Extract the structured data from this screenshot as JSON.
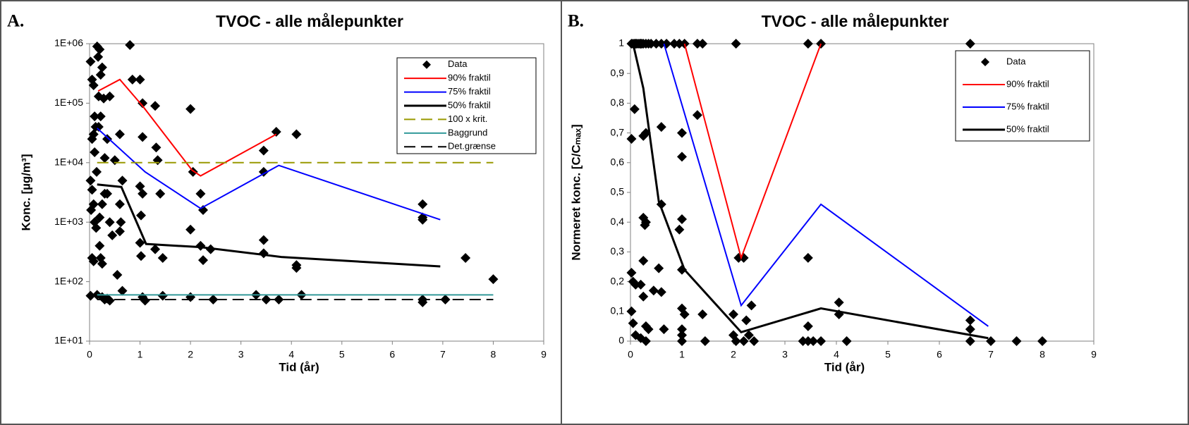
{
  "chart_data": [
    {
      "type": "scatter",
      "panel_label": "A.",
      "title": "TVOC - alle målepunkter",
      "xlabel": "Tid (år)",
      "ylabel": "Konc. [µg/m³]",
      "xlim": [
        0,
        9
      ],
      "xticks": [
        0,
        1,
        2,
        3,
        4,
        5,
        6,
        7,
        8,
        9
      ],
      "ylim": [
        10,
        1000000
      ],
      "log_y": true,
      "yticks": [
        {
          "value": 10,
          "label": "1E+01"
        },
        {
          "value": 100,
          "label": "1E+02"
        },
        {
          "value": 1000,
          "label": "1E+03"
        },
        {
          "value": 10000,
          "label": "1E+04"
        },
        {
          "value": 100000,
          "label": "1E+05"
        },
        {
          "value": 1000000,
          "label": "1E+06"
        }
      ],
      "series": [
        {
          "name": "Data",
          "kind": "marker",
          "color": "#000000",
          "x": [
            0.02,
            0.05,
            0.08,
            0.1,
            0.12,
            0.15,
            0.17,
            0.2,
            0.22,
            0.25,
            0.18,
            0.08,
            0.05,
            0.1,
            0.14,
            0.02,
            0.05,
            0.08,
            0.03,
            0.1,
            0.13,
            0.2,
            0.25,
            0.3,
            0.35,
            0.4,
            0.45,
            0.2,
            0.22,
            0.05,
            0.08,
            0.25,
            0.15,
            0.25,
            0.3,
            0.02,
            0.35,
            0.4,
            0.18,
            0.22,
            0.28,
            0.3,
            0.35,
            0.4,
            0.5,
            0.55,
            0.6,
            0.6,
            0.62,
            0.6,
            0.65,
            0.65,
            0.8,
            0.85,
            1.0,
            1.05,
            1.05,
            1.0,
            1.05,
            1.02,
            1.0,
            1.02,
            1.05,
            1.1,
            1.3,
            1.32,
            1.35,
            1.3,
            1.4,
            1.45,
            1.45,
            2.0,
            2.05,
            2.0,
            2.0,
            2.2,
            2.25,
            2.2,
            2.25,
            2.4,
            2.45,
            3.3,
            3.45,
            3.45,
            3.45,
            3.45,
            3.5,
            3.7,
            3.75,
            4.1,
            4.1,
            4.1,
            4.2,
            6.6,
            6.6,
            6.6,
            6.6,
            6.6,
            7.05,
            7.45,
            8.0
          ],
          "values": [
            500000,
            250000,
            200000,
            60000,
            40000,
            900000,
            600000,
            800000,
            300000,
            400000,
            130000,
            30000,
            25000,
            15000,
            7000,
            5000,
            3500,
            2000,
            1600,
            1000,
            800,
            1200,
            2000,
            3000,
            3000,
            1000,
            600,
            400,
            250,
            250,
            220,
            200,
            60,
            55,
            50,
            58,
            52,
            48,
            40000,
            60000,
            120000,
            12000,
            25000,
            130000,
            11000,
            130,
            30000,
            2000,
            1000,
            700,
            5000,
            70,
            950000,
            250000,
            250000,
            100000,
            27000,
            4000,
            3000,
            1300,
            450,
            270,
            55,
            48,
            90000,
            18000,
            11000,
            350,
            3000,
            250,
            58,
            80000,
            7000,
            750,
            55,
            3000,
            1600,
            400,
            230,
            350,
            50,
            60,
            16000,
            7000,
            500,
            300,
            50,
            33000,
            50,
            30000,
            190,
            170,
            60,
            2000,
            1100,
            1200,
            50,
            45,
            50,
            250,
            110
          ]
        },
        {
          "name": "90% fraktil",
          "kind": "line",
          "color": "#ff0000",
          "x": [
            0.17,
            0.6,
            1.05,
            2.03,
            2.2,
            3.7
          ],
          "values": [
            160000,
            250000,
            90000,
            7500,
            6000,
            30000
          ]
        },
        {
          "name": "75% fraktil",
          "kind": "line",
          "color": "#0000ff",
          "x": [
            0.15,
            1.1,
            2.2,
            3.75,
            6.95
          ],
          "values": [
            38000,
            7000,
            1700,
            9000,
            1100
          ]
        },
        {
          "name": "50% fraktil",
          "kind": "line",
          "color": "#000000",
          "width": 3,
          "x": [
            0.15,
            0.63,
            1.12,
            2.2,
            3.8,
            6.95
          ],
          "values": [
            4300,
            3900,
            430,
            380,
            260,
            180
          ]
        },
        {
          "name": "100 x krit.",
          "kind": "line",
          "dash": true,
          "color": "#999900",
          "x": [
            0.15,
            8
          ],
          "values": [
            10000,
            10000
          ]
        },
        {
          "name": "Baggrund",
          "kind": "line",
          "color": "#339999",
          "x": [
            0.15,
            8
          ],
          "values": [
            60,
            60
          ]
        },
        {
          "name": "Det.grænse",
          "kind": "line",
          "dash": true,
          "color": "#000000",
          "x": [
            0.15,
            8
          ],
          "values": [
            50,
            50
          ]
        }
      ]
    },
    {
      "type": "scatter",
      "panel_label": "B.",
      "title": "TVOC - alle målepunkter",
      "xlabel": "Tid (år)",
      "ylabel": "Normeret konc. [C/Cₘₐₓ]",
      "xlim": [
        0,
        9
      ],
      "xticks": [
        0,
        1,
        2,
        3,
        4,
        5,
        6,
        7,
        8,
        9
      ],
      "ylim": [
        0,
        1
      ],
      "log_y": false,
      "yticks": [
        0,
        {
          "value": 0.1,
          "label": "0,1"
        },
        {
          "value": 0.2,
          "label": "0,2"
        },
        {
          "value": 0.3,
          "label": "0,3"
        },
        {
          "value": 0.4,
          "label": "0,4"
        },
        {
          "value": 0.5,
          "label": "0,5"
        },
        {
          "value": 0.6,
          "label": "0,6"
        },
        {
          "value": 0.7,
          "label": "0,7"
        },
        {
          "value": 0.8,
          "label": "0,8"
        },
        {
          "value": 0.9,
          "label": "0,9"
        },
        1
      ],
      "series": [
        {
          "name": "Data",
          "kind": "marker",
          "color": "#000000",
          "x": [
            0.02,
            0.05,
            0.08,
            0.1,
            0.12,
            0.15,
            0.18,
            0.2,
            0.22,
            0.25,
            0.3,
            0.35,
            0.4,
            0.5,
            0.6,
            0.7,
            0.85,
            0.95,
            1.05,
            1.3,
            1.4,
            2.05,
            3.45,
            3.7,
            6.6,
            0.02,
            0.08,
            0.25,
            0.3,
            0.6,
            0.6,
            1.0,
            1.0,
            1.3,
            1.0,
            0.95,
            0.25,
            0.3,
            0.28,
            0.25,
            1.0,
            0.02,
            0.05,
            0.1,
            0.2,
            0.55,
            0.45,
            0.6,
            0.25,
            0.02,
            1.0,
            1.05,
            1.4,
            0.3,
            0.35,
            0.65,
            0.05,
            0.1,
            0.2,
            0.3,
            1.0,
            1.0,
            1.0,
            1.45,
            2.0,
            2.0,
            2.05,
            2.1,
            2.2,
            2.25,
            2.3,
            2.35,
            2.4,
            2.2,
            3.35,
            3.45,
            3.45,
            3.45,
            3.55,
            3.7,
            4.05,
            4.05,
            4.2,
            6.6,
            6.6,
            6.6,
            7.0,
            7.5,
            8.0
          ],
          "values": [
            1,
            1,
            1,
            1,
            1,
            1,
            1,
            1,
            1,
            1,
            1,
            1,
            1,
            1,
            1,
            1,
            1,
            1,
            1,
            1,
            1,
            1,
            1,
            1,
            1,
            0.68,
            0.78,
            0.69,
            0.7,
            0.72,
            0.46,
            0.7,
            0.62,
            0.76,
            0.41,
            0.375,
            0.415,
            0.4,
            0.39,
            0.27,
            0.24,
            0.23,
            0.2,
            0.19,
            0.19,
            0.245,
            0.17,
            0.165,
            0.15,
            0.1,
            0.11,
            0.09,
            0.09,
            0.05,
            0.04,
            0.04,
            0.06,
            0.02,
            0.01,
            0,
            0.04,
            0,
            0.02,
            0,
            0.09,
            0.02,
            0,
            0.28,
            0.28,
            0.07,
            0.02,
            0.12,
            0,
            0,
            0,
            0.05,
            0,
            0.28,
            0,
            0,
            0.13,
            0.09,
            0,
            0.07,
            0.04,
            0,
            0,
            0,
            0
          ]
        },
        {
          "name": "90% fraktil",
          "kind": "line",
          "color": "#ff0000",
          "x": [
            1.05,
            2.15,
            3.7
          ],
          "values": [
            1,
            0.28,
            1
          ]
        },
        {
          "name": "75% fraktil",
          "kind": "line",
          "color": "#0000ff",
          "x": [
            0.65,
            2.15,
            3.7,
            6.95
          ],
          "values": [
            1,
            0.12,
            0.46,
            0.05
          ]
        },
        {
          "name": "50% fraktil",
          "kind": "line",
          "color": "#000000",
          "width": 3,
          "x": [
            0.05,
            0.25,
            0.55,
            1.05,
            2.15,
            3.7,
            6.95
          ],
          "values": [
            1,
            0.85,
            0.47,
            0.24,
            0.03,
            0.11,
            0.01
          ]
        }
      ]
    }
  ]
}
